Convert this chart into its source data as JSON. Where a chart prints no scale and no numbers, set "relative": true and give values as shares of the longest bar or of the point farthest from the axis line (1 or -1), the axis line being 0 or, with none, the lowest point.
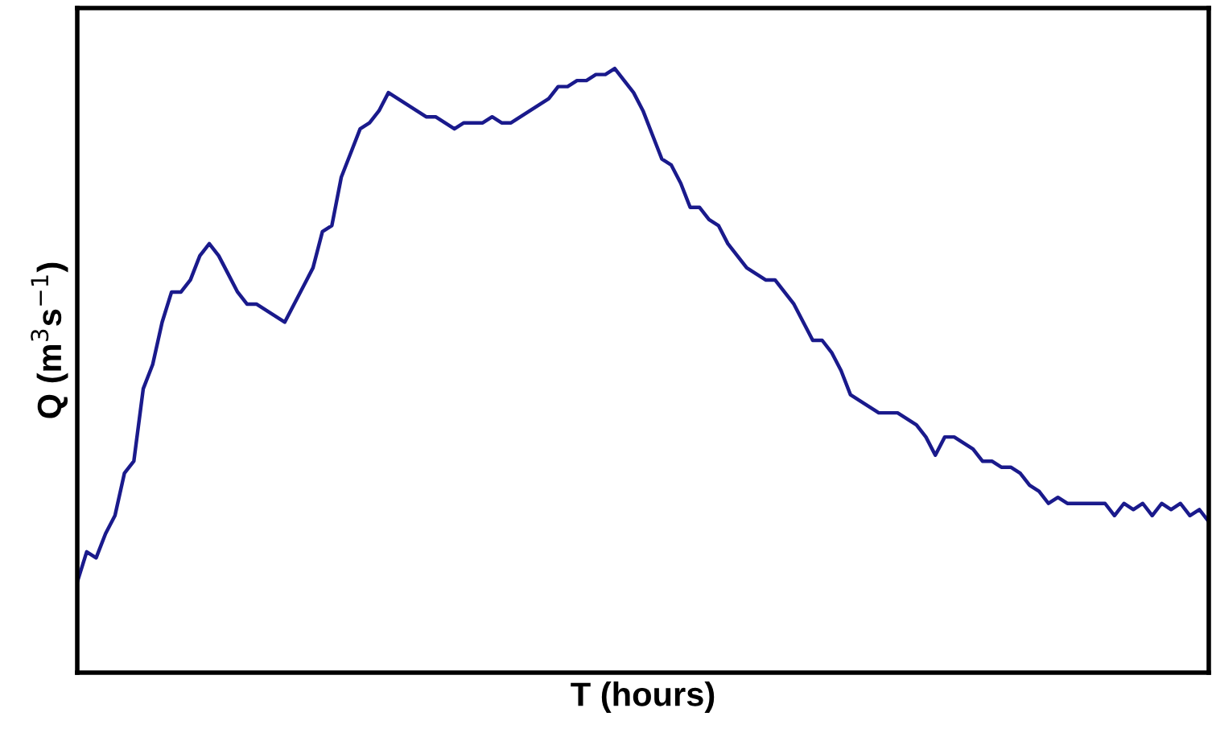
{
  "chart_data": {
    "type": "line",
    "relative": true,
    "xlabel": "T (hours)",
    "ylabel": "Q (m$^{3}$s$^{−1}$)",
    "legend": false,
    "marker": "none",
    "line_style": "solid",
    "categories": [
      null,
      null,
      null,
      null,
      null,
      null,
      null,
      null,
      null,
      null,
      null,
      null,
      null,
      null,
      null,
      null,
      null,
      null,
      null,
      null,
      null,
      null,
      null,
      null,
      null,
      null,
      null,
      null,
      null,
      null,
      null,
      null,
      null,
      null,
      null,
      null,
      null,
      null,
      null,
      null,
      null,
      null,
      null,
      null,
      null,
      null,
      null,
      null,
      null,
      null,
      null,
      null,
      null,
      null,
      null,
      null,
      null,
      null,
      null,
      null,
      null,
      null,
      null,
      null,
      null,
      null,
      null,
      null,
      null,
      null,
      null,
      null,
      null,
      null,
      null,
      null,
      null,
      null,
      null,
      null,
      null,
      null,
      null,
      null,
      null,
      null,
      null,
      null,
      null,
      null,
      null,
      null,
      null,
      null,
      null,
      null,
      null,
      null,
      null,
      null,
      null,
      null,
      null,
      null,
      null,
      null,
      null,
      null,
      null,
      null,
      null,
      null,
      null,
      null,
      null,
      null,
      null,
      null,
      null,
      null,
      null
    ],
    "series": [
      {
        "color": "#1a1a8c",
        "values": [
          0.15,
          0.2,
          0.19,
          0.23,
          0.26,
          0.33,
          0.35,
          0.47,
          0.51,
          0.58,
          0.63,
          0.63,
          0.65,
          0.69,
          0.71,
          0.69,
          0.66,
          0.63,
          0.61,
          0.61,
          0.6,
          0.59,
          0.58,
          0.61,
          0.64,
          0.67,
          0.73,
          0.74,
          0.82,
          0.86,
          0.9,
          0.91,
          0.93,
          0.96,
          0.95,
          0.94,
          0.93,
          0.92,
          0.92,
          0.91,
          0.9,
          0.91,
          0.91,
          0.91,
          0.92,
          0.91,
          0.91,
          0.92,
          0.93,
          0.94,
          0.95,
          0.97,
          0.97,
          0.98,
          0.98,
          0.99,
          0.99,
          1.0,
          0.98,
          0.96,
          0.93,
          0.89,
          0.85,
          0.84,
          0.81,
          0.77,
          0.77,
          0.75,
          0.74,
          0.71,
          0.69,
          0.67,
          0.66,
          0.65,
          0.65,
          0.63,
          0.61,
          0.58,
          0.55,
          0.55,
          0.53,
          0.5,
          0.46,
          0.45,
          0.44,
          0.43,
          0.43,
          0.43,
          0.42,
          0.41,
          0.39,
          0.36,
          0.39,
          0.39,
          0.38,
          0.37,
          0.35,
          0.35,
          0.34,
          0.34,
          0.33,
          0.31,
          0.3,
          0.28,
          0.29,
          0.28,
          0.28,
          0.28,
          0.28,
          0.28,
          0.26,
          0.28,
          0.27,
          0.28,
          0.26,
          0.28,
          0.27,
          0.28,
          0.26,
          0.27,
          0.25
        ]
      }
    ]
  }
}
